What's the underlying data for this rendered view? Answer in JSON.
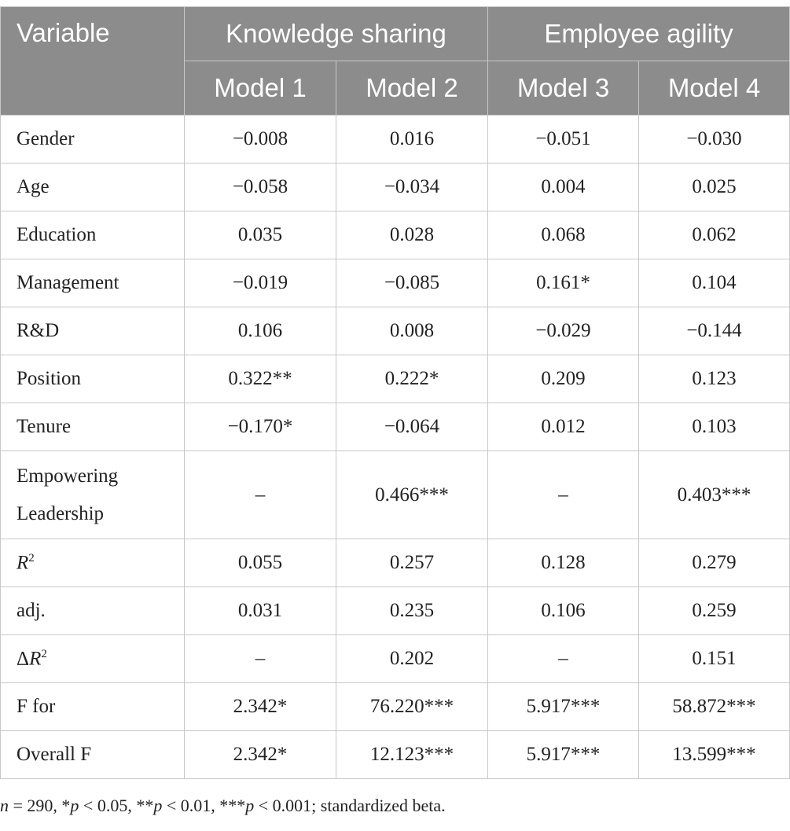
{
  "header": {
    "variable": "Variable",
    "group_ks": "Knowledge sharing",
    "group_ea": "Employee agility",
    "model1": "Model 1",
    "model2": "Model 2",
    "model3": "Model 3",
    "model4": "Model 4"
  },
  "rows": [
    {
      "label": "Gender",
      "v": [
        "−0.008",
        "0.016",
        "−0.051",
        "−0.030"
      ]
    },
    {
      "label": "Age",
      "v": [
        "−0.058",
        "−0.034",
        "0.004",
        "0.025"
      ]
    },
    {
      "label": "Education",
      "v": [
        "0.035",
        "0.028",
        "0.068",
        "0.062"
      ]
    },
    {
      "label": "Management",
      "v": [
        "−0.019",
        "−0.085",
        "0.161*",
        "0.104"
      ]
    },
    {
      "label": "R&D",
      "v": [
        "0.106",
        "0.008",
        "−0.029",
        "−0.144"
      ]
    },
    {
      "label": "Position",
      "v": [
        "0.322**",
        "0.222*",
        "0.209",
        "0.123"
      ]
    },
    {
      "label": "Tenure",
      "v": [
        "−0.170*",
        "−0.064",
        "0.012",
        "0.103"
      ]
    },
    {
      "label_line1": "Empowering",
      "label_line2": "Leadership",
      "v": [
        "–",
        "0.466***",
        "–",
        "0.403***"
      ]
    },
    {
      "label_base": "R",
      "label_sup": "2",
      "v": [
        "0.055",
        "0.257",
        "0.128",
        "0.279"
      ]
    },
    {
      "label": "adj.",
      "v": [
        "0.031",
        "0.235",
        "0.106",
        "0.259"
      ]
    },
    {
      "label_pre": "Δ",
      "label_base": "R",
      "label_sup": "2",
      "v": [
        "–",
        "0.202",
        "–",
        "0.151"
      ]
    },
    {
      "label": "F for",
      "v": [
        "2.342*",
        "76.220***",
        "5.917***",
        "58.872***"
      ]
    },
    {
      "label": "Overall F",
      "v": [
        "2.342*",
        "12.123***",
        "5.917***",
        "13.599***"
      ]
    }
  ],
  "footnote": {
    "n_sym": "n",
    "n_val": " = 290, *",
    "p1": "p",
    "t1": " < 0.05, **",
    "p2": "p",
    "t2": " < 0.01, ***",
    "p3": "p",
    "t3": " < 0.001; standardized beta."
  }
}
